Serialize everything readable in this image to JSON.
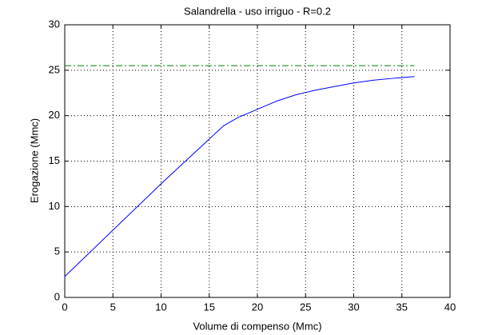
{
  "chart_data": {
    "type": "line",
    "title": "Salandrella  -  uso irriguo  -   R=0.2",
    "xlabel": "Volume di compenso (Mmc)",
    "ylabel": "Erogazione (Mmc)",
    "series": [
      {
        "color": "#0000ff",
        "style": "solid",
        "x": [
          0,
          5,
          10,
          16.5,
          18,
          20,
          22,
          24,
          26,
          28,
          30,
          32,
          34,
          36.3
        ],
        "values": [
          2.3,
          7.4,
          12.5,
          18.9,
          19.8,
          20.7,
          21.6,
          22.3,
          22.8,
          23.2,
          23.6,
          23.9,
          24.1,
          24.3
        ]
      },
      {
        "color": "#008000",
        "style": "dashdot",
        "x": [
          0,
          36.3
        ],
        "values": [
          25.5,
          25.5
        ]
      }
    ],
    "xlim": [
      0,
      40
    ],
    "xticks": [
      0,
      5,
      10,
      15,
      20,
      25,
      30,
      35,
      40
    ],
    "ylim": [
      0,
      30
    ],
    "yticks": [
      0,
      5,
      10,
      15,
      20,
      25,
      30
    ],
    "grid": true
  }
}
